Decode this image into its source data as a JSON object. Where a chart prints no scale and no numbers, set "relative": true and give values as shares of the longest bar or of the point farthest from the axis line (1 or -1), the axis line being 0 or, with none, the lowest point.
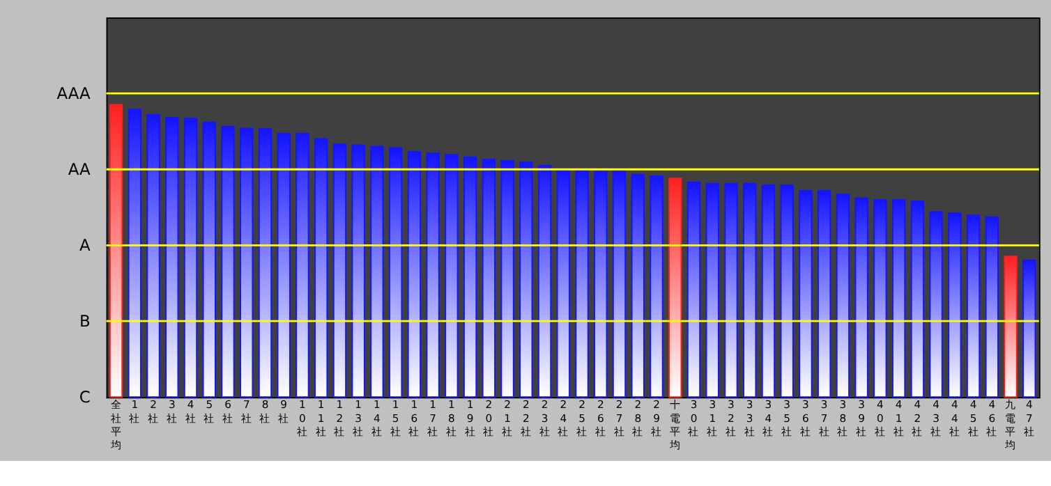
{
  "chart_data": {
    "type": "bar",
    "relative": true,
    "categories": [
      "全社平均",
      "1社",
      "2社",
      "3社",
      "4社",
      "5社",
      "6社",
      "7社",
      "8社",
      "9社",
      "10社",
      "11社",
      "12社",
      "13社",
      "14社",
      "15社",
      "16社",
      "17社",
      "18社",
      "19社",
      "20社",
      "21社",
      "22社",
      "23社",
      "24社",
      "25社",
      "26社",
      "27社",
      "28社",
      "29社",
      "十電平均",
      "30社",
      "31社",
      "32社",
      "33社",
      "34社",
      "35社",
      "36社",
      "37社",
      "38社",
      "39社",
      "40社",
      "41社",
      "42社",
      "43社",
      "44社",
      "45社",
      "46社",
      "九電平均",
      "47社"
    ],
    "values": [
      1,
      0.984,
      0.966,
      0.956,
      0.953,
      0.94,
      0.925,
      0.919,
      0.917,
      0.901,
      0.901,
      0.883,
      0.865,
      0.862,
      0.857,
      0.852,
      0.839,
      0.834,
      0.829,
      0.821,
      0.813,
      0.808,
      0.803,
      0.792,
      0.779,
      0.774,
      0.771,
      0.771,
      0.761,
      0.756,
      0.748,
      0.735,
      0.73,
      0.73,
      0.73,
      0.725,
      0.725,
      0.706,
      0.706,
      0.694,
      0.681,
      0.675,
      0.675,
      0.67,
      0.634,
      0.629,
      0.621,
      0.616,
      0.481,
      0.468
    ],
    "colors": [
      "#ff2020",
      "#1414ff",
      "#1414ff",
      "#1414ff",
      "#1414ff",
      "#1414ff",
      "#1414ff",
      "#1414ff",
      "#1414ff",
      "#1414ff",
      "#1414ff",
      "#1414ff",
      "#1414ff",
      "#1414ff",
      "#1414ff",
      "#1414ff",
      "#1414ff",
      "#1414ff",
      "#1414ff",
      "#1414ff",
      "#1414ff",
      "#1414ff",
      "#1414ff",
      "#1414ff",
      "#1414ff",
      "#1414ff",
      "#1414ff",
      "#1414ff",
      "#1414ff",
      "#1414ff",
      "#ff2020",
      "#1414ff",
      "#1414ff",
      "#1414ff",
      "#1414ff",
      "#1414ff",
      "#1414ff",
      "#1414ff",
      "#1414ff",
      "#1414ff",
      "#1414ff",
      "#1414ff",
      "#1414ff",
      "#1414ff",
      "#1414ff",
      "#1414ff",
      "#1414ff",
      "#1414ff",
      "#ff2020",
      "#1414ff"
    ],
    "annotations": [
      "C"
    ],
    "ref_lines": [
      {
        "axis": "y",
        "value": 0.26,
        "label": "B",
        "color": "#ffff00"
      },
      {
        "axis": "y",
        "value": 0.519,
        "label": "A",
        "color": "#ffff00"
      },
      {
        "axis": "y",
        "value": 0.779,
        "label": "AA",
        "color": "#ffff00"
      },
      {
        "axis": "y",
        "value": 1.039,
        "label": "AAA",
        "color": "#ffff00"
      }
    ]
  }
}
